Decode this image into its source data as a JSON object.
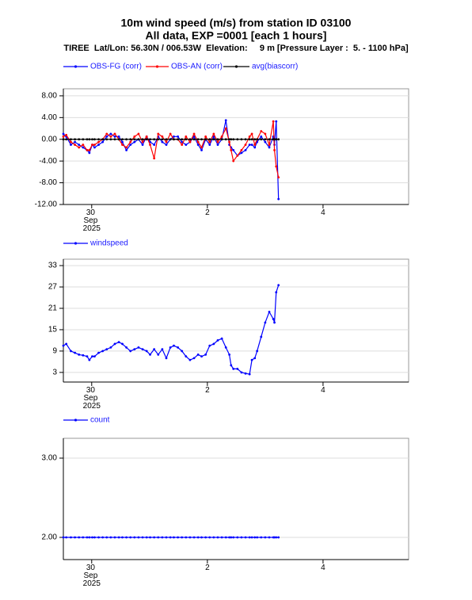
{
  "header": {
    "title": "10m wind speed (m/s) from station ID 03100",
    "subtitle": "All data, EXP =0001 [each  1 hours]",
    "station": "TIREE  Lat/Lon: 56.30N / 006.53W  Elevation:     9 m [Pressure Layer :  5. - 1100 hPa]"
  },
  "chart_data": [
    {
      "type": "line",
      "x": [
        -0.49,
        -0.44,
        -0.36,
        -0.29,
        -0.22,
        -0.15,
        -0.08,
        -0.04,
        0.01,
        0.05,
        0.12,
        0.19,
        0.26,
        0.33,
        0.4,
        0.47,
        0.53,
        0.6,
        0.67,
        0.74,
        0.81,
        0.88,
        0.95,
        1.01,
        1.08,
        1.15,
        1.22,
        1.29,
        1.36,
        1.42,
        1.49,
        1.56,
        1.63,
        1.7,
        1.77,
        1.84,
        1.9,
        1.97,
        2.04,
        2.11,
        2.18,
        2.25,
        2.32,
        2.38,
        2.41,
        2.45,
        2.52,
        2.59,
        2.66,
        2.73,
        2.77,
        2.82,
        2.86,
        2.93,
        3.0,
        3.07,
        3.14,
        3.16,
        3.19,
        3.23
      ],
      "series": [
        {
          "name": "OBS-FG (corr)",
          "color": "#0000ff",
          "values": [
            1,
            0.5,
            -1,
            -0.5,
            -1,
            -1.5,
            -2,
            -2.5,
            -1,
            -1.5,
            -1,
            -0.5,
            0.5,
            1,
            0.5,
            0.5,
            -0.5,
            -2,
            -1,
            -0.5,
            0,
            -1,
            0.5,
            -0.5,
            -1,
            0.5,
            -0.5,
            -1,
            0,
            0.5,
            0.5,
            -0.5,
            -1,
            -0.5,
            0.5,
            -1,
            -2,
            0,
            -1,
            0.5,
            -1,
            0,
            3.5,
            -1,
            -1.5,
            -2,
            -3,
            -2.5,
            -2,
            -1,
            -1,
            -1.5,
            -0.5,
            0.5,
            -0.5,
            -1.5,
            0.5,
            -1,
            3.3,
            -11
          ]
        },
        {
          "name": "OBS-AN (corr)",
          "color": "#ff0000",
          "values": [
            0.5,
            0.8,
            -0.5,
            -1,
            -1.5,
            -1,
            -2,
            -2,
            -1,
            -1,
            -0.5,
            0,
            1,
            0.5,
            1,
            0,
            -1,
            -1.5,
            -0.5,
            0.5,
            1,
            -0.5,
            0.5,
            -1,
            -3.5,
            1,
            0.5,
            -0.5,
            1,
            0,
            0,
            -1,
            0.5,
            -0.5,
            1,
            -0.5,
            -1.5,
            0.5,
            -0.5,
            1,
            -0.5,
            0.5,
            2,
            -0.5,
            -2,
            -4,
            -3,
            -2,
            -1,
            0.5,
            1,
            -1,
            0,
            1.5,
            1,
            -1,
            3.3,
            -2,
            -5,
            -7
          ]
        },
        {
          "name": "avg(biascorr)",
          "color": "#000000",
          "values": [
            0,
            0,
            0,
            0,
            0,
            0,
            0,
            0,
            0,
            0,
            0,
            0,
            0,
            0,
            0,
            0,
            0,
            0,
            0,
            0,
            0,
            0,
            0,
            0,
            0,
            0,
            0,
            0,
            0,
            0,
            0,
            0,
            0,
            0,
            0,
            0,
            0,
            0,
            0,
            0,
            0,
            0,
            0,
            0,
            0,
            0,
            0,
            0,
            0,
            0,
            0,
            0,
            0,
            0,
            0,
            0,
            0,
            0,
            0,
            0
          ]
        }
      ],
      "xlim": [
        -0.49,
        5.48
      ],
      "xticks": [
        {
          "value": 0,
          "label": "30 Sep 2025"
        },
        2,
        4
      ],
      "ylim": [
        -12,
        9.3
      ],
      "yticks": [
        {
          "value": -12,
          "label": "-12.00"
        },
        {
          "value": -8,
          "label": "-8.00"
        },
        {
          "value": -4,
          "label": "-4.00"
        },
        {
          "value": 0,
          "label": "0.00"
        },
        {
          "value": 4,
          "label": "4.00"
        },
        {
          "value": 8,
          "label": "8.00"
        }
      ],
      "grid": true
    },
    {
      "type": "line",
      "x": [
        -0.49,
        -0.44,
        -0.36,
        -0.29,
        -0.22,
        -0.15,
        -0.08,
        -0.04,
        0.01,
        0.05,
        0.12,
        0.19,
        0.26,
        0.33,
        0.4,
        0.47,
        0.53,
        0.6,
        0.67,
        0.74,
        0.81,
        0.88,
        0.95,
        1.01,
        1.08,
        1.15,
        1.22,
        1.29,
        1.36,
        1.42,
        1.49,
        1.56,
        1.63,
        1.7,
        1.77,
        1.84,
        1.9,
        1.97,
        2.04,
        2.11,
        2.18,
        2.25,
        2.32,
        2.38,
        2.41,
        2.45,
        2.52,
        2.59,
        2.66,
        2.73,
        2.77,
        2.82,
        2.86,
        2.93,
        3.0,
        3.07,
        3.14,
        3.16,
        3.19,
        3.23
      ],
      "series": [
        {
          "name": "windspeed",
          "color": "#0000ff",
          "values": [
            10.5,
            11,
            9,
            8.5,
            8,
            7.8,
            7.5,
            6.5,
            7.5,
            7.5,
            8.5,
            9,
            9.5,
            10,
            11,
            11.5,
            11,
            10,
            9,
            9.5,
            10,
            9.5,
            9,
            8,
            9.5,
            8,
            9.5,
            7,
            10,
            10.5,
            10,
            9,
            7.5,
            6.5,
            7,
            8,
            7.5,
            8,
            10.5,
            11,
            12,
            12.5,
            10,
            8,
            5,
            4,
            4,
            3,
            2.7,
            2.5,
            6.5,
            7,
            9,
            13,
            17,
            20,
            18,
            17,
            25.5,
            27.5
          ]
        }
      ],
      "xlim": [
        -0.49,
        5.48
      ],
      "xticks": [
        {
          "value": 0,
          "label": "30 Sep 2025"
        },
        2,
        4
      ],
      "ylim": [
        0.3,
        34.8
      ],
      "yticks": [
        3,
        9,
        15,
        21,
        27,
        33
      ],
      "grid": true
    },
    {
      "type": "line",
      "x": [
        -0.49,
        -0.44,
        -0.36,
        -0.29,
        -0.22,
        -0.15,
        -0.08,
        -0.04,
        0.01,
        0.05,
        0.12,
        0.19,
        0.26,
        0.33,
        0.4,
        0.47,
        0.53,
        0.6,
        0.67,
        0.74,
        0.81,
        0.88,
        0.95,
        1.01,
        1.08,
        1.15,
        1.22,
        1.29,
        1.36,
        1.42,
        1.49,
        1.56,
        1.63,
        1.7,
        1.77,
        1.84,
        1.9,
        1.97,
        2.04,
        2.11,
        2.18,
        2.25,
        2.32,
        2.38,
        2.41,
        2.45,
        2.52,
        2.59,
        2.66,
        2.73,
        2.77,
        2.82,
        2.86,
        2.93,
        3.0,
        3.07,
        3.14,
        3.16,
        3.19,
        3.23
      ],
      "series": [
        {
          "name": "count",
          "color": "#0000ff",
          "values": [
            2,
            2,
            2,
            2,
            2,
            2,
            2,
            2,
            2,
            2,
            2,
            2,
            2,
            2,
            2,
            2,
            2,
            2,
            2,
            2,
            2,
            2,
            2,
            2,
            2,
            2,
            2,
            2,
            2,
            2,
            2,
            2,
            2,
            2,
            2,
            2,
            2,
            2,
            2,
            2,
            2,
            2,
            2,
            2,
            2,
            2,
            2,
            2,
            2,
            2,
            2,
            2,
            2,
            2,
            2,
            2,
            2,
            2,
            2,
            2
          ]
        }
      ],
      "xlim": [
        -0.49,
        5.48
      ],
      "xticks": [
        {
          "value": 0,
          "label": "30 Sep 2025"
        },
        2,
        4
      ],
      "ylim": [
        1.72,
        3.25
      ],
      "yticks": [
        {
          "value": 2,
          "label": "2.00"
        },
        {
          "value": 3,
          "label": "3.00"
        }
      ],
      "grid": true
    }
  ]
}
